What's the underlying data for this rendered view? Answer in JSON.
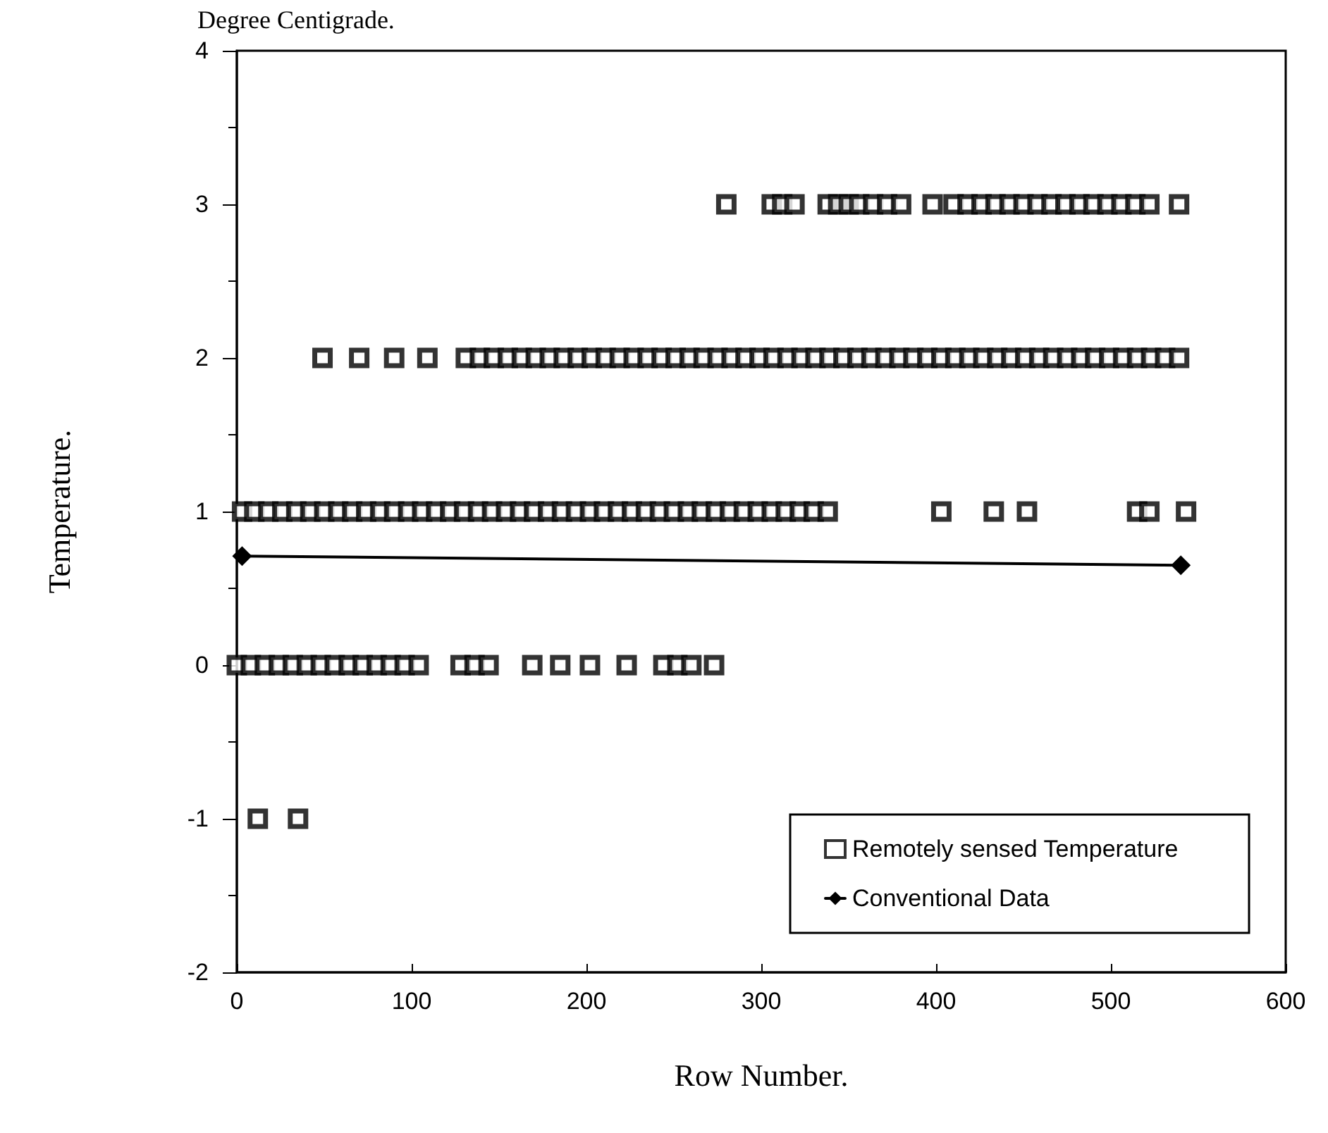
{
  "chart_data": {
    "type": "scatter",
    "title": "Degree Centigrade.",
    "xlabel": "Row Number.",
    "ylabel": "Temperature.",
    "xlim": [
      0,
      600
    ],
    "xticks": [
      0,
      100,
      200,
      300,
      400,
      500,
      600
    ],
    "ylim": [
      -2,
      4
    ],
    "yticks": [
      -2,
      -1,
      0,
      1,
      2,
      3,
      4
    ],
    "grid": false,
    "legend": "bottom right",
    "series": [
      {
        "name": "Remotely sensed Temperature",
        "marker": "square",
        "color": "#000000",
        "x": [
          12,
          35,
          0,
          8,
          16,
          24,
          32,
          40,
          48,
          56,
          64,
          72,
          80,
          88,
          96,
          104,
          128,
          136,
          144,
          169,
          185,
          202,
          223,
          244,
          252,
          260,
          273,
          3,
          10,
          18,
          26,
          34,
          42,
          50,
          58,
          66,
          74,
          82,
          90,
          98,
          106,
          114,
          122,
          130,
          138,
          146,
          154,
          162,
          170,
          178,
          186,
          194,
          202,
          210,
          218,
          226,
          234,
          242,
          250,
          258,
          266,
          274,
          282,
          290,
          298,
          306,
          314,
          322,
          330,
          338,
          403,
          433,
          452,
          515,
          522,
          543,
          49,
          70,
          90,
          109,
          131,
          139,
          147,
          155,
          163,
          171,
          179,
          187,
          195,
          203,
          211,
          219,
          227,
          235,
          243,
          251,
          259,
          267,
          275,
          283,
          291,
          299,
          307,
          315,
          323,
          331,
          339,
          347,
          355,
          363,
          371,
          379,
          387,
          395,
          403,
          411,
          419,
          427,
          435,
          443,
          451,
          459,
          467,
          475,
          483,
          491,
          499,
          507,
          515,
          523,
          531,
          539,
          280,
          306,
          312,
          319,
          338,
          344,
          350,
          356,
          364,
          372,
          380,
          398,
          410,
          418,
          426,
          434,
          442,
          450,
          458,
          466,
          474,
          482,
          490,
          498,
          506,
          514,
          522,
          539
        ],
        "values": [
          -1,
          -1,
          0,
          0,
          0,
          0,
          0,
          0,
          0,
          0,
          0,
          0,
          0,
          0,
          0,
          0,
          0,
          0,
          0,
          0,
          0,
          0,
          0,
          0,
          0,
          0,
          0,
          1,
          1,
          1,
          1,
          1,
          1,
          1,
          1,
          1,
          1,
          1,
          1,
          1,
          1,
          1,
          1,
          1,
          1,
          1,
          1,
          1,
          1,
          1,
          1,
          1,
          1,
          1,
          1,
          1,
          1,
          1,
          1,
          1,
          1,
          1,
          1,
          1,
          1,
          1,
          1,
          1,
          1,
          1,
          1,
          1,
          1,
          1,
          1,
          1,
          2,
          2,
          2,
          2,
          2,
          2,
          2,
          2,
          2,
          2,
          2,
          2,
          2,
          2,
          2,
          2,
          2,
          2,
          2,
          2,
          2,
          2,
          2,
          2,
          2,
          2,
          2,
          2,
          2,
          2,
          2,
          2,
          2,
          2,
          2,
          2,
          2,
          2,
          2,
          2,
          2,
          2,
          2,
          2,
          2,
          2,
          2,
          2,
          2,
          2,
          2,
          2,
          2,
          2,
          2,
          2,
          3,
          3,
          3,
          3,
          3,
          3,
          3,
          3,
          3,
          3,
          3,
          3,
          3,
          3,
          3,
          3,
          3,
          3,
          3,
          3,
          3,
          3,
          3,
          3,
          3,
          3,
          3,
          3
        ]
      },
      {
        "name": "Conventional Data",
        "type": "line",
        "marker": "diamond",
        "line_style": "solid",
        "color": "#000000",
        "x": [
          3,
          540
        ],
        "values": [
          0.71,
          0.65
        ]
      }
    ]
  }
}
